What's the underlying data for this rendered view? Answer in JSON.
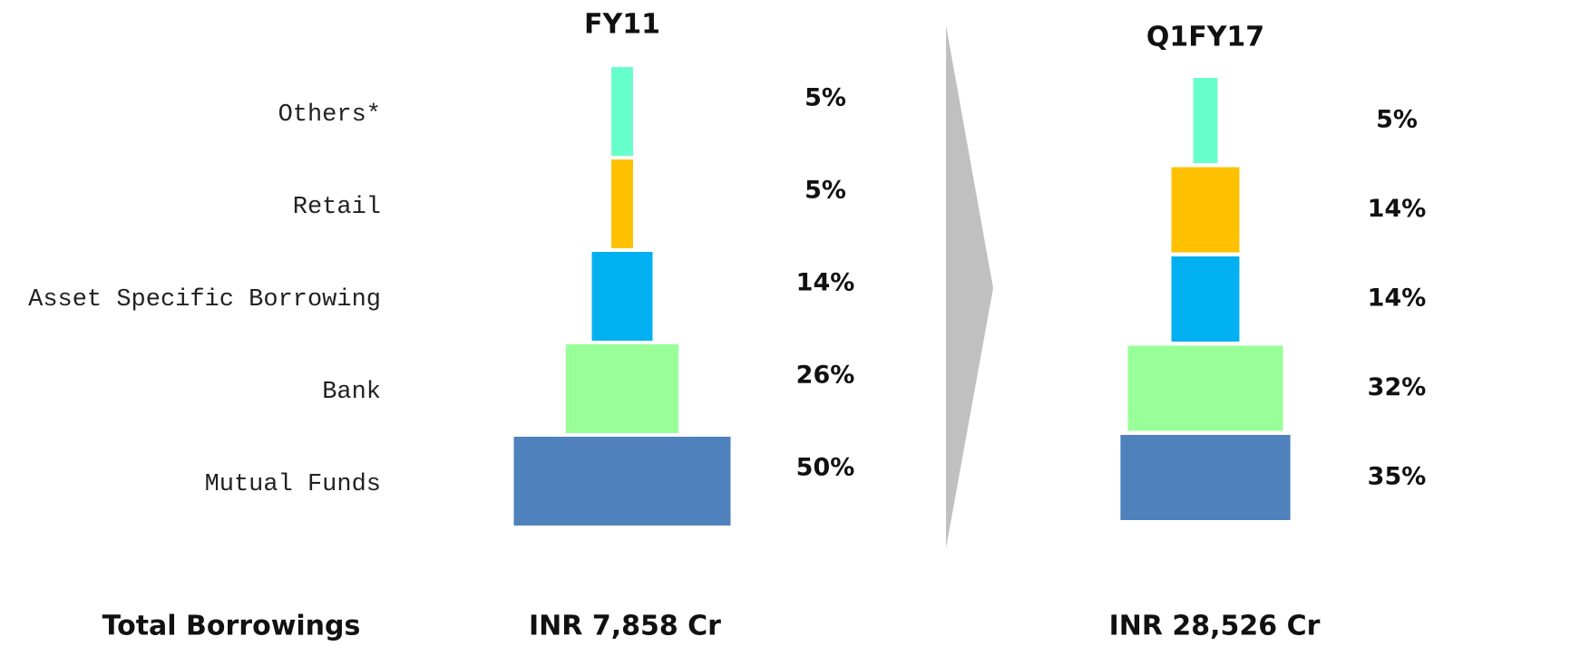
{
  "chart_data": {
    "type": "funnel",
    "categories": [
      "Others*",
      "Retail",
      "Asset Specific Borrowing",
      "Bank",
      "Mutual Funds"
    ],
    "colors": [
      "#66ffcc",
      "#ffc000",
      "#00b0f0",
      "#99ff99",
      "#4f81bd"
    ],
    "total_label": "Total Borrowings",
    "series": [
      {
        "name": "FY11",
        "values": [
          5,
          5,
          14,
          26,
          50
        ],
        "value_labels": [
          "5%",
          "5%",
          "14%",
          "26%",
          "50%"
        ],
        "total": "INR 7,858 Cr"
      },
      {
        "name": "Q1FY17",
        "values": [
          5,
          14,
          14,
          32,
          35
        ],
        "value_labels": [
          "5%",
          "14%",
          "14%",
          "32%",
          "35%"
        ],
        "total": "INR 28,526 Cr"
      }
    ]
  }
}
